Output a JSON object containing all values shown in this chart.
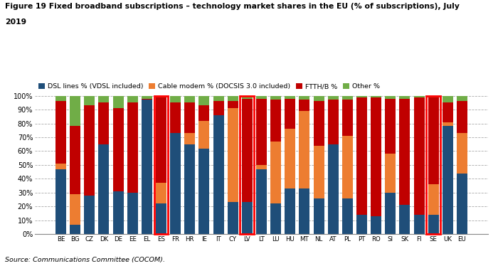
{
  "title_line1": "Figure 19 Fixed broadband subscriptions – technology market shares in the EU (% of subscriptions), July",
  "title_line2": "2019",
  "source": "Source: Communications Committee (COCOM).",
  "categories": [
    "BE",
    "BG",
    "CZ",
    "DK",
    "DE",
    "EE",
    "EL",
    "ES",
    "FR",
    "HR",
    "IE",
    "IT",
    "CY",
    "LV",
    "LT",
    "LU",
    "HU",
    "MT",
    "NL",
    "AT",
    "PL",
    "PT",
    "RO",
    "SI",
    "SK",
    "FI",
    "SE",
    "UK",
    "EU"
  ],
  "dsl": [
    47,
    7,
    28,
    65,
    31,
    30,
    97,
    22,
    73,
    65,
    62,
    86,
    23,
    23,
    47,
    22,
    33,
    33,
    26,
    65,
    26,
    14,
    13,
    30,
    21,
    14,
    14,
    78,
    44
  ],
  "cable": [
    4,
    22,
    0,
    0,
    0,
    0,
    0,
    15,
    0,
    8,
    20,
    0,
    68,
    0,
    3,
    45,
    43,
    56,
    38,
    0,
    45,
    0,
    0,
    28,
    0,
    0,
    22,
    3,
    29
  ],
  "ftth": [
    45,
    49,
    65,
    30,
    60,
    65,
    1,
    62,
    22,
    22,
    11,
    10,
    5,
    75,
    48,
    30,
    22,
    8,
    32,
    32,
    26,
    85,
    86,
    40,
    77,
    85,
    63,
    14,
    23
  ],
  "other": [
    4,
    22,
    7,
    5,
    9,
    5,
    2,
    1,
    5,
    5,
    7,
    4,
    4,
    2,
    2,
    3,
    2,
    3,
    4,
    3,
    3,
    1,
    1,
    2,
    2,
    1,
    1,
    5,
    4
  ],
  "highlight": [
    "ES",
    "LV",
    "SE"
  ],
  "colors": {
    "dsl": "#1f4e79",
    "cable": "#ed7d31",
    "ftth": "#c00000",
    "other": "#70ad47"
  },
  "legend_labels": [
    "DSL lines % (VDSL included)",
    "Cable modem % (DOCSIS 3.0 included)",
    "FTTH/B %",
    "Other %"
  ],
  "ylim": [
    0,
    100
  ],
  "ylabel_ticks": [
    "0%",
    "10%",
    "20%",
    "30%",
    "40%",
    "50%",
    "60%",
    "70%",
    "80%",
    "90%",
    "100%"
  ]
}
